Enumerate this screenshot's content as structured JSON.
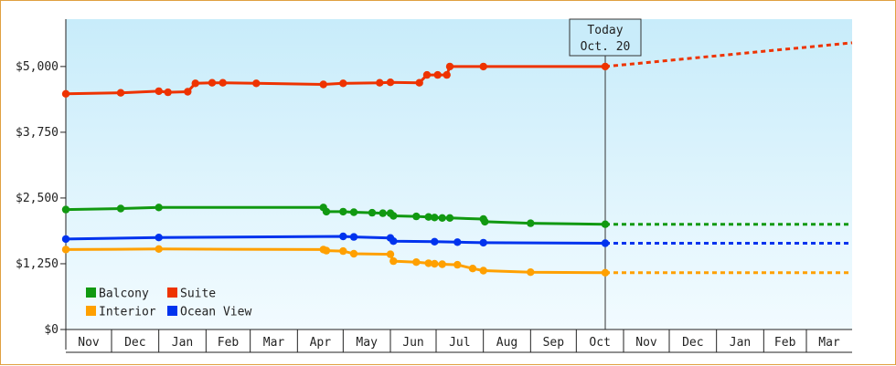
{
  "chart_data": {
    "type": "line",
    "today": {
      "line1": "Today",
      "line2": "Oct. 20",
      "date": "2024-10-20"
    },
    "x_axis": {
      "start": "2023-11-01",
      "end": "2025-03-31",
      "months": [
        {
          "label": "Nov",
          "start": "2023-11-01"
        },
        {
          "label": "Dec",
          "start": "2023-12-01"
        },
        {
          "label": "Jan",
          "start": "2024-01-01"
        },
        {
          "label": "Feb",
          "start": "2024-02-01"
        },
        {
          "label": "Mar",
          "start": "2024-03-01"
        },
        {
          "label": "Apr",
          "start": "2024-04-01"
        },
        {
          "label": "May",
          "start": "2024-05-01"
        },
        {
          "label": "Jun",
          "start": "2024-06-01"
        },
        {
          "label": "Jul",
          "start": "2024-07-01"
        },
        {
          "label": "Aug",
          "start": "2024-08-01"
        },
        {
          "label": "Sep",
          "start": "2024-09-01"
        },
        {
          "label": "Oct",
          "start": "2024-10-01"
        },
        {
          "label": "Nov",
          "start": "2024-11-01"
        },
        {
          "label": "Dec",
          "start": "2024-12-01"
        },
        {
          "label": "Jan",
          "start": "2025-01-01"
        },
        {
          "label": "Feb",
          "start": "2025-02-01"
        },
        {
          "label": "Mar",
          "start": "2025-03-01"
        }
      ]
    },
    "y_axis": {
      "min": 0,
      "max": 5900,
      "ticks": [
        {
          "value": 0,
          "label": "$0"
        },
        {
          "value": 1250,
          "label": "$1,250"
        },
        {
          "value": 2500,
          "label": "$2,500"
        },
        {
          "value": 3750,
          "label": "$3,750"
        },
        {
          "value": 5000,
          "label": "$5,000"
        }
      ]
    },
    "legend": {
      "placement": "bottom-left",
      "entries": [
        {
          "name": "Balcony",
          "color": "#119911"
        },
        {
          "name": "Suite",
          "color": "#ee3300"
        },
        {
          "name": "Interior",
          "color": "#ffa000"
        },
        {
          "name": "Ocean View",
          "color": "#0033ee"
        }
      ]
    },
    "series": [
      {
        "name": "Suite",
        "color": "#ee3300",
        "points": [
          [
            "2023-11-01",
            4480
          ],
          [
            "2023-12-07",
            4500
          ],
          [
            "2024-01-01",
            4530
          ],
          [
            "2024-01-07",
            4510
          ],
          [
            "2024-01-20",
            4520
          ],
          [
            "2024-01-25",
            4680
          ],
          [
            "2024-02-05",
            4690
          ],
          [
            "2024-02-12",
            4690
          ],
          [
            "2024-03-05",
            4680
          ],
          [
            "2024-04-18",
            4660
          ],
          [
            "2024-05-01",
            4680
          ],
          [
            "2024-05-25",
            4690
          ],
          [
            "2024-06-01",
            4700
          ],
          [
            "2024-06-20",
            4690
          ],
          [
            "2024-06-25",
            4840
          ],
          [
            "2024-07-02",
            4840
          ],
          [
            "2024-07-08",
            4840
          ],
          [
            "2024-07-10",
            5000
          ],
          [
            "2024-08-01",
            5000
          ],
          [
            "2024-10-20",
            5000
          ]
        ],
        "forecast": [
          [
            "2024-10-20",
            5000
          ],
          [
            "2025-03-31",
            5450
          ]
        ]
      },
      {
        "name": "Balcony",
        "color": "#119911",
        "points": [
          [
            "2023-11-01",
            2280
          ],
          [
            "2023-12-07",
            2300
          ],
          [
            "2024-01-01",
            2320
          ],
          [
            "2024-04-18",
            2320
          ],
          [
            "2024-04-20",
            2240
          ],
          [
            "2024-05-01",
            2240
          ],
          [
            "2024-05-08",
            2230
          ],
          [
            "2024-05-20",
            2220
          ],
          [
            "2024-05-27",
            2210
          ],
          [
            "2024-06-01",
            2210
          ],
          [
            "2024-06-03",
            2160
          ],
          [
            "2024-06-18",
            2150
          ],
          [
            "2024-06-26",
            2140
          ],
          [
            "2024-06-30",
            2130
          ],
          [
            "2024-07-05",
            2120
          ],
          [
            "2024-07-10",
            2120
          ],
          [
            "2024-08-01",
            2100
          ],
          [
            "2024-08-02",
            2050
          ],
          [
            "2024-09-01",
            2020
          ],
          [
            "2024-10-20",
            2000
          ]
        ],
        "forecast": [
          [
            "2024-10-20",
            2000
          ],
          [
            "2025-03-31",
            2000
          ]
        ]
      },
      {
        "name": "Ocean View",
        "color": "#0033ee",
        "points": [
          [
            "2023-11-01",
            1720
          ],
          [
            "2024-01-01",
            1750
          ],
          [
            "2024-05-01",
            1770
          ],
          [
            "2024-05-08",
            1760
          ],
          [
            "2024-06-01",
            1740
          ],
          [
            "2024-06-03",
            1680
          ],
          [
            "2024-06-30",
            1670
          ],
          [
            "2024-07-15",
            1660
          ],
          [
            "2024-08-01",
            1650
          ],
          [
            "2024-10-20",
            1640
          ]
        ],
        "forecast": [
          [
            "2024-10-20",
            1640
          ],
          [
            "2025-03-31",
            1640
          ]
        ]
      },
      {
        "name": "Interior",
        "color": "#ffa000",
        "points": [
          [
            "2023-11-01",
            1520
          ],
          [
            "2024-01-01",
            1530
          ],
          [
            "2024-04-18",
            1520
          ],
          [
            "2024-04-20",
            1500
          ],
          [
            "2024-05-01",
            1490
          ],
          [
            "2024-05-08",
            1440
          ],
          [
            "2024-06-01",
            1430
          ],
          [
            "2024-06-03",
            1300
          ],
          [
            "2024-06-18",
            1280
          ],
          [
            "2024-06-26",
            1260
          ],
          [
            "2024-06-30",
            1250
          ],
          [
            "2024-07-05",
            1240
          ],
          [
            "2024-07-15",
            1230
          ],
          [
            "2024-07-25",
            1160
          ],
          [
            "2024-08-01",
            1120
          ],
          [
            "2024-09-01",
            1090
          ],
          [
            "2024-10-20",
            1080
          ]
        ],
        "forecast": [
          [
            "2024-10-20",
            1080
          ],
          [
            "2025-03-31",
            1080
          ]
        ]
      }
    ]
  }
}
